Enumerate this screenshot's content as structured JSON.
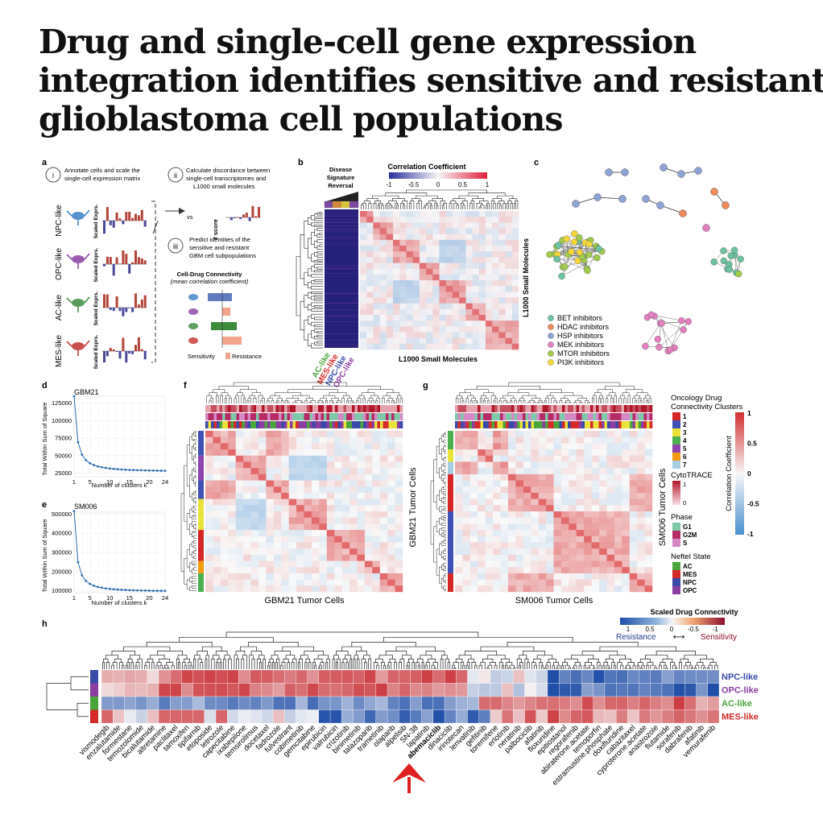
{
  "title_lines": [
    "Drug and single-cell gene expression",
    "integration identifies sensitive and resistant",
    "glioblastoma cell populations"
  ],
  "panels": {
    "a": "a",
    "b": "b",
    "c": "c",
    "d": "d",
    "e": "e",
    "f": "f",
    "g": "g",
    "h": "h"
  },
  "panel_a": {
    "steps": [
      {
        "num": "i",
        "lines": [
          "Annotate cells and scale the",
          "single-cell expression matrix"
        ]
      },
      {
        "num": "ii",
        "lines": [
          "Calculate discordance between",
          "single-cell transcriptomes and",
          "L1000 small molecules"
        ]
      },
      {
        "num": "iii",
        "lines": [
          "Predict identities of the",
          "sensitive and resistant",
          "GBM cell subpopulations"
        ]
      }
    ],
    "cell_types": [
      "NPC-like",
      "OPC-like",
      "AC-like",
      "MES-like"
    ],
    "scaled_expr_label": "Scaled Exprs.",
    "vs_label": "vs",
    "zscore_label": "z score",
    "connectivity_title": "Cell-Drug Connectivity",
    "connectivity_sub": "(mean correlation coefficient)",
    "sensitivity_label": "Sensitivity",
    "resistance_label": "Resistance"
  },
  "panel_b": {
    "title": "Correlation Coefficient",
    "ticks": [
      "-1",
      "-0.5",
      "0",
      "0.5",
      "1"
    ],
    "disease_label": [
      "Disease",
      "Signature",
      "Reversal"
    ],
    "xlabel": "L1000 Small Molecules",
    "ylabel": "L1000 Small Molecules",
    "col_labels": [
      "AC-like",
      "MES-like",
      "NPC-like",
      "OPC-like"
    ],
    "col_colors": [
      "#4aa53c",
      "#d42a2a",
      "#3a4aa8",
      "#8a3ea0"
    ]
  },
  "panel_c": {
    "legend": [
      {
        "label": "BET inhibitors",
        "color": "#6cc3a0"
      },
      {
        "label": "HDAC inhibitors",
        "color": "#f08a5a"
      },
      {
        "label": "HSP inhibitors",
        "color": "#8ea3d6"
      },
      {
        "label": "MEK inhibitors",
        "color": "#e47fc0"
      },
      {
        "label": "MTOR inhibitors",
        "color": "#a2cc4c"
      },
      {
        "label": "PI3K inhibitors",
        "color": "#f4d83a"
      }
    ]
  },
  "panel_d": {
    "title": "GBM21",
    "ylabel": "Total Within Sum of Square",
    "xlabel": "Number of clusters k",
    "yticks": [
      "25000",
      "50000",
      "75000",
      "100000",
      "125000"
    ],
    "xticks": [
      "1",
      "5",
      "10",
      "15",
      "20",
      "24"
    ]
  },
  "panel_e": {
    "title": "SM006",
    "ylabel": "Total Within Sum of Square",
    "xlabel": "Number of clusters k",
    "yticks": [
      "100000",
      "200000",
      "300000",
      "400000",
      "500000"
    ],
    "xticks": [
      "1",
      "5",
      "10",
      "15",
      "20",
      "24"
    ]
  },
  "panel_f": {
    "xlabel": "GBM21 Tumor Cells",
    "ylabel": "GBM21 Tumor Cells"
  },
  "panel_g": {
    "xlabel": "SM006 Tumor Cells",
    "ylabel": "SM006 Tumor Cells"
  },
  "legend_fg": {
    "clusters_title": "Oncology Drug Connectivity Clusters",
    "clusters": [
      {
        "label": "1",
        "color": "#d62728"
      },
      {
        "label": "2",
        "color": "#3f51b5"
      },
      {
        "label": "3",
        "color": "#e8e23a"
      },
      {
        "label": "4",
        "color": "#4caf50"
      },
      {
        "label": "5",
        "color": "#8e44ad"
      },
      {
        "label": "6",
        "color": "#f39c12"
      },
      {
        "label": "7",
        "color": "#a6cee3"
      }
    ],
    "cytotrace_title": "CytoTRACE",
    "cytotrace_ticks": [
      "1",
      "0"
    ],
    "phase_title": "Phase",
    "phases": [
      {
        "label": "G1",
        "color": "#7fc8a9"
      },
      {
        "label": "G2M",
        "color": "#b52b65"
      },
      {
        "label": "S",
        "color": "#d58ac6"
      }
    ],
    "state_title": "Neftel State",
    "states": [
      {
        "label": "AC",
        "color": "#4aa53c"
      },
      {
        "label": "MES",
        "color": "#d42a2a"
      },
      {
        "label": "NPC",
        "color": "#3a4aa8"
      },
      {
        "label": "OPC",
        "color": "#8a3ea0"
      }
    ],
    "corr_title": "Correlation Coefficient",
    "corr_ticks": [
      "1",
      "0.5",
      "0",
      "-0.5",
      "-1"
    ]
  },
  "panel_h": {
    "title": "Scaled Drug Connectivity",
    "ticks": [
      "1",
      "0.5",
      "0",
      "-0.5",
      "-1"
    ],
    "resistance": "Resistance",
    "sensitivity": "Sensitivity",
    "row_labels": [
      {
        "label": "NPC-like",
        "color": "#3a4aa8"
      },
      {
        "label": "OPC-like",
        "color": "#8a3ea0"
      },
      {
        "label": "AC-like",
        "color": "#4aa53c"
      },
      {
        "label": "MES-like",
        "color": "#d42a2a"
      }
    ],
    "drugs": [
      "vismodegib",
      "enzalutamide",
      "formestane",
      "temozolomide",
      "bicalutamide",
      "altretamine",
      "paclitaxel",
      "tamoxifen",
      "tipifarnib",
      "etoposide",
      "letrozole",
      "capecitabine",
      "ixabepilone",
      "temsirolimus",
      "docetaxel",
      "fadrozole",
      "fulvestrant",
      "cobimetinib",
      "gemcitabine",
      "epirubicin",
      "valrubicin",
      "crizotinib",
      "binimetinib",
      "talazoparib",
      "trametinib",
      "olaparib",
      "alpelisib",
      "SN-38",
      "lapatinib",
      "abemaciclib",
      "dinaciclib",
      "irinotecan",
      "lenvatinib",
      "gefitinib",
      "toremifene",
      "erlotinib",
      "neratinib",
      "palbociclib",
      "afatinib",
      "floxuridine",
      "epitiostanol",
      "regorafenib",
      "abiraterone.acetate",
      "temoporfin",
      "estramustine.phosphate",
      "doxifluridine",
      "cabazitaxel",
      "cyproterone.acetate",
      "anastrozole",
      "flutamide",
      "sorafenib",
      "dabrafenib",
      "afatinib",
      "vemurafenib"
    ],
    "highlight": "abemaciclib"
  }
}
